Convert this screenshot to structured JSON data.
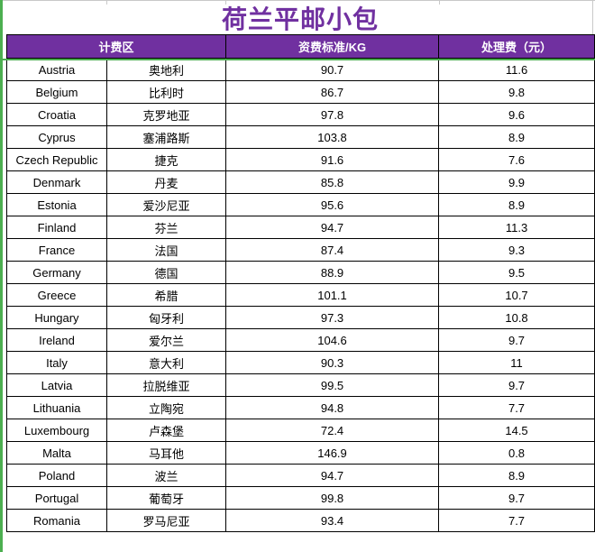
{
  "title": "荷兰平邮小包",
  "colors": {
    "purple": "#7030A0",
    "green": "#4CAF50",
    "border": "#000000",
    "gridline": "#c9c9c9"
  },
  "table": {
    "headers": {
      "zone": "计费区",
      "rate": "资费标准/KG",
      "fee": "处理费（元）"
    },
    "rows": [
      {
        "en": "Austria",
        "zh": "奥地利",
        "rate": "90.7",
        "fee": "11.6"
      },
      {
        "en": "Belgium",
        "zh": "比利时",
        "rate": "86.7",
        "fee": "9.8"
      },
      {
        "en": "Croatia",
        "zh": "克罗地亚",
        "rate": "97.8",
        "fee": "9.6"
      },
      {
        "en": "Cyprus",
        "zh": "塞浦路斯",
        "rate": "103.8",
        "fee": "8.9"
      },
      {
        "en": "Czech Republic",
        "zh": "捷克",
        "rate": "91.6",
        "fee": "7.6"
      },
      {
        "en": "Denmark",
        "zh": "丹麦",
        "rate": "85.8",
        "fee": "9.9"
      },
      {
        "en": "Estonia",
        "zh": "爱沙尼亚",
        "rate": "95.6",
        "fee": "8.9"
      },
      {
        "en": "Finland",
        "zh": "芬兰",
        "rate": "94.7",
        "fee": "11.3"
      },
      {
        "en": "France",
        "zh": "法国",
        "rate": "87.4",
        "fee": "9.3"
      },
      {
        "en": "Germany",
        "zh": "德国",
        "rate": "88.9",
        "fee": "9.5"
      },
      {
        "en": "Greece",
        "zh": "希腊",
        "rate": "101.1",
        "fee": "10.7"
      },
      {
        "en": "Hungary",
        "zh": "匈牙利",
        "rate": "97.3",
        "fee": "10.8"
      },
      {
        "en": "Ireland",
        "zh": "爱尔兰",
        "rate": "104.6",
        "fee": "9.7"
      },
      {
        "en": "Italy",
        "zh": "意大利",
        "rate": "90.3",
        "fee": "11"
      },
      {
        "en": "Latvia",
        "zh": "拉脱维亚",
        "rate": "99.5",
        "fee": "9.7"
      },
      {
        "en": "Lithuania",
        "zh": "立陶宛",
        "rate": "94.8",
        "fee": "7.7"
      },
      {
        "en": "Luxembourg",
        "zh": "卢森堡",
        "rate": "72.4",
        "fee": "14.5"
      },
      {
        "en": "Malta",
        "zh": "马耳他",
        "rate": "146.9",
        "fee": "0.8"
      },
      {
        "en": "Poland",
        "zh": "波兰",
        "rate": "94.7",
        "fee": "8.9"
      },
      {
        "en": "Portugal",
        "zh": "葡萄牙",
        "rate": "99.8",
        "fee": "9.7"
      },
      {
        "en": "Romania",
        "zh": "罗马尼亚",
        "rate": "93.4",
        "fee": "7.7"
      }
    ]
  }
}
